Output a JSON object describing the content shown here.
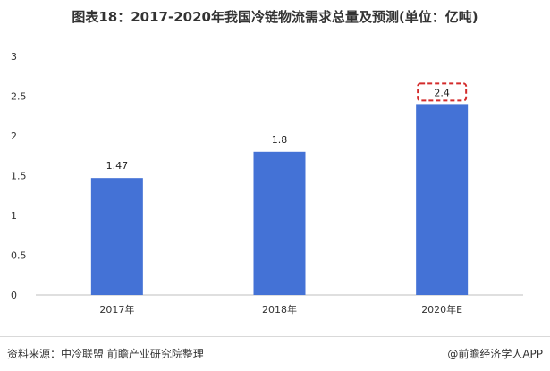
{
  "title": "图表18：2017-2020年我国冷链物流需求总量及预测(单位：亿吨)",
  "source": "资料来源：中冷联盟 前瞻产业研究院整理",
  "brand": "@前瞻经济学人APP",
  "colors": {
    "bar": "#4472d6",
    "highlight": "#d32b2b",
    "axis": "#bfbfbf"
  },
  "chart_data": {
    "type": "bar",
    "title": "图表18：2017-2020年我国冷链物流需求总量及预测(单位：亿吨)",
    "categories": [
      "2017年",
      "2018年",
      "2020年E"
    ],
    "values": [
      1.47,
      1.8,
      2.4
    ],
    "data_labels": [
      "1.47",
      "1.8",
      "2.4"
    ],
    "highlighted_category": "2020年E",
    "yticks": [
      "0",
      "0.5",
      "1",
      "1.5",
      "2",
      "2.5",
      "3"
    ],
    "ylim": [
      0,
      3
    ],
    "xlabel": "",
    "ylabel": "",
    "grid": false,
    "legend": "none"
  }
}
